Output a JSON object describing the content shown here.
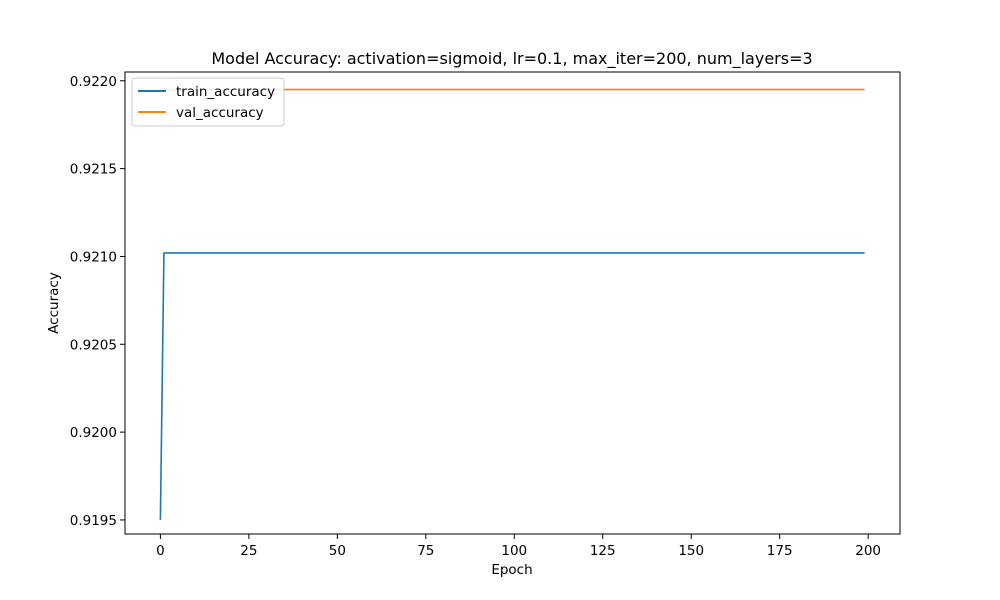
{
  "chart_data": {
    "type": "line",
    "title": "Model Accuracy: activation=sigmoid, lr=0.1, max_iter=200, num_layers=3",
    "xlabel": "Epoch",
    "ylabel": "Accuracy",
    "xlim": [
      -10,
      209
    ],
    "ylim": [
      0.91942,
      0.92205
    ],
    "xticks": [
      0,
      25,
      50,
      75,
      100,
      125,
      150,
      175,
      200
    ],
    "xtick_labels": [
      "0",
      "25",
      "50",
      "75",
      "100",
      "125",
      "150",
      "175",
      "200"
    ],
    "yticks": [
      0.9195,
      0.92,
      0.9205,
      0.921,
      0.9215,
      0.922
    ],
    "ytick_labels": [
      "0.9195",
      "0.9200",
      "0.9205",
      "0.9210",
      "0.9215",
      "0.9220"
    ],
    "grid": false,
    "legend_position": "top-left",
    "series": [
      {
        "name": "train_accuracy",
        "color": "#1f77b4",
        "x": [
          0,
          1,
          199
        ],
        "y": [
          0.9195,
          0.92102,
          0.92102
        ]
      },
      {
        "name": "val_accuracy",
        "color": "#ff7f0e",
        "x": [
          0,
          199
        ],
        "y": [
          0.92195,
          0.92195
        ]
      }
    ]
  }
}
